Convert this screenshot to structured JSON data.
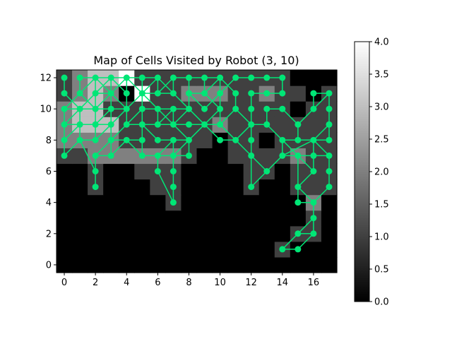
{
  "chart_data": {
    "type": "heatmap",
    "title": "Map of Cells Visited by Robot (3, 10)",
    "xlabel": "",
    "ylabel": "",
    "xlim": [
      -0.5,
      17.5
    ],
    "ylim": [
      -0.5,
      12.5
    ],
    "x_ticks": [
      0,
      2,
      4,
      6,
      8,
      10,
      12,
      14,
      16
    ],
    "y_ticks": [
      0,
      2,
      4,
      6,
      8,
      10,
      12
    ],
    "grid": false,
    "colormap": "gray",
    "colorbar": {
      "min": 0.0,
      "max": 4.0,
      "ticks": [
        "0.0",
        "0.5",
        "1.0",
        "1.5",
        "2.0",
        "2.5",
        "3.0",
        "3.5",
        "4.0"
      ]
    },
    "grid_values": [
      [
        0,
        0,
        0,
        0,
        0,
        0,
        0,
        0,
        0,
        0,
        0,
        0,
        0,
        0,
        0,
        0,
        0,
        0
      ],
      [
        0,
        0,
        0,
        0,
        0,
        0,
        0,
        0,
        0,
        0,
        0,
        0,
        0,
        0,
        1,
        0,
        0,
        0
      ],
      [
        0,
        0,
        0,
        0,
        0,
        0,
        0,
        0,
        0,
        0,
        0,
        0,
        0,
        0,
        0,
        1,
        1,
        0
      ],
      [
        0,
        0,
        0,
        0,
        0,
        0,
        0,
        0,
        0,
        0,
        0,
        0,
        0,
        0,
        0,
        0,
        1,
        0
      ],
      [
        0,
        0,
        0,
        0,
        0,
        0,
        0,
        1,
        0,
        0,
        0,
        0,
        0,
        0,
        0,
        0,
        2,
        0
      ],
      [
        0,
        0,
        1,
        0,
        0,
        0,
        1,
        1,
        0,
        0,
        0,
        0,
        1,
        0,
        0,
        1,
        1,
        1
      ],
      [
        0,
        0,
        1,
        0,
        0,
        1,
        1,
        1,
        0,
        0,
        0,
        0,
        1,
        1,
        0,
        1,
        1,
        1
      ],
      [
        1,
        1,
        2,
        2,
        2,
        2,
        2,
        2,
        1,
        0,
        0,
        1,
        1,
        1,
        1,
        2,
        1,
        1
      ],
      [
        2,
        2,
        2,
        2,
        1,
        1,
        1,
        1,
        1,
        1,
        0,
        1,
        1,
        0,
        1,
        1,
        1,
        1
      ],
      [
        2,
        3,
        3,
        3,
        1,
        1,
        1,
        1,
        1,
        1,
        2,
        1,
        1,
        1,
        1,
        1,
        1,
        1
      ],
      [
        2,
        3,
        3,
        1,
        1,
        1,
        1,
        1,
        1,
        1,
        1,
        1,
        1,
        1,
        1,
        0,
        1,
        1
      ],
      [
        1,
        2,
        3,
        2,
        0,
        4,
        1,
        1,
        2,
        2,
        2,
        1,
        1,
        2,
        1,
        1,
        0,
        1
      ],
      [
        1,
        2,
        3,
        3,
        4,
        1,
        1,
        1,
        1,
        1,
        1,
        1,
        1,
        1,
        1,
        0,
        0,
        0
      ]
    ],
    "path_points": [
      [
        0,
        12
      ],
      [
        0,
        11
      ],
      [
        1,
        10
      ],
      [
        1,
        9
      ],
      [
        0,
        8
      ],
      [
        0,
        9
      ],
      [
        0,
        10
      ],
      [
        1,
        11
      ],
      [
        1,
        12
      ],
      [
        2,
        12
      ],
      [
        3,
        12
      ],
      [
        4,
        12
      ],
      [
        5,
        12
      ],
      [
        6,
        12
      ],
      [
        6,
        11
      ],
      [
        7,
        11
      ],
      [
        7,
        12
      ],
      [
        8,
        12
      ],
      [
        8,
        11
      ],
      [
        9,
        10
      ],
      [
        10,
        11
      ],
      [
        11,
        12
      ],
      [
        12,
        12
      ],
      [
        13,
        12
      ],
      [
        14,
        12
      ],
      [
        14,
        11
      ],
      [
        13,
        11
      ],
      [
        12,
        11
      ],
      [
        12,
        10
      ],
      [
        12,
        9
      ],
      [
        12,
        8
      ],
      [
        12,
        7
      ],
      [
        13,
        6
      ],
      [
        14,
        7
      ],
      [
        15,
        7
      ],
      [
        16,
        7
      ],
      [
        16,
        6
      ],
      [
        15,
        7
      ],
      [
        14,
        8
      ],
      [
        13,
        9
      ],
      [
        13,
        10
      ],
      [
        14,
        10
      ],
      [
        15,
        9
      ],
      [
        15,
        8
      ],
      [
        16,
        8
      ],
      [
        17,
        7
      ],
      [
        17,
        6
      ],
      [
        17,
        5
      ],
      [
        16,
        4
      ],
      [
        16,
        3
      ],
      [
        16,
        2
      ],
      [
        15,
        1
      ],
      [
        14,
        1
      ],
      [
        15,
        2
      ],
      [
        16,
        3
      ],
      [
        16,
        4
      ],
      [
        15,
        5
      ],
      [
        15,
        7
      ],
      [
        14,
        7
      ],
      [
        13,
        6
      ],
      [
        12,
        5
      ],
      [
        13,
        6
      ],
      [
        14,
        7
      ],
      [
        16,
        8
      ],
      [
        17,
        9
      ],
      [
        17,
        10
      ],
      [
        17,
        11
      ],
      [
        16,
        10
      ],
      [
        15,
        9
      ],
      [
        15,
        8
      ],
      [
        14,
        8
      ],
      [
        13,
        9
      ],
      [
        12,
        9
      ],
      [
        11,
        8
      ],
      [
        10,
        9
      ],
      [
        10,
        10
      ],
      [
        9,
        11
      ],
      [
        9,
        12
      ],
      [
        10,
        12
      ],
      [
        11,
        11
      ],
      [
        11,
        10
      ],
      [
        10,
        9
      ],
      [
        9,
        9
      ],
      [
        8,
        8
      ],
      [
        7,
        9
      ],
      [
        7,
        10
      ],
      [
        6,
        10
      ],
      [
        5,
        11
      ],
      [
        5,
        10
      ],
      [
        5,
        9
      ],
      [
        6,
        8
      ],
      [
        7,
        8
      ],
      [
        6,
        7
      ],
      [
        5,
        7
      ],
      [
        5,
        8
      ],
      [
        4,
        8
      ],
      [
        3,
        7
      ],
      [
        3,
        8
      ],
      [
        2,
        7
      ],
      [
        2,
        6
      ],
      [
        2,
        5
      ],
      [
        2,
        6
      ],
      [
        1,
        8
      ],
      [
        1,
        9
      ],
      [
        2,
        9
      ],
      [
        3,
        9
      ],
      [
        3,
        10
      ],
      [
        4,
        10
      ],
      [
        4,
        11
      ],
      [
        3,
        12
      ],
      [
        2,
        11
      ],
      [
        2,
        10
      ],
      [
        1,
        10
      ],
      [
        0,
        9
      ],
      [
        0,
        7
      ],
      [
        1,
        8
      ],
      [
        2,
        8
      ],
      [
        3,
        9
      ],
      [
        3,
        11
      ],
      [
        2,
        11
      ],
      [
        2,
        12
      ],
      [
        3,
        11
      ],
      [
        4,
        10
      ],
      [
        5,
        11
      ],
      [
        6,
        10
      ],
      [
        6,
        9
      ],
      [
        7,
        9
      ],
      [
        8,
        10
      ],
      [
        9,
        9
      ],
      [
        10,
        10
      ],
      [
        10,
        11
      ],
      [
        10,
        12
      ],
      [
        9,
        11
      ],
      [
        8,
        11
      ],
      [
        8,
        10
      ],
      [
        7,
        10
      ],
      [
        6,
        9
      ],
      [
        5,
        9
      ],
      [
        4,
        9
      ],
      [
        4,
        12
      ],
      [
        5,
        12
      ],
      [
        5,
        11
      ],
      [
        4,
        10
      ],
      [
        3,
        9
      ],
      [
        2,
        8
      ],
      [
        2,
        9
      ],
      [
        2,
        10
      ],
      [
        3,
        11
      ],
      [
        3,
        12
      ],
      [
        2,
        12
      ],
      [
        1,
        11
      ],
      [
        2,
        10
      ],
      [
        3,
        10
      ],
      [
        2,
        9
      ],
      [
        1,
        9
      ],
      [
        0,
        9
      ],
      [
        0,
        10
      ],
      [
        1,
        10
      ],
      [
        2,
        11
      ],
      [
        3,
        11
      ],
      [
        4,
        12
      ],
      [
        5,
        11
      ],
      [
        6,
        11
      ],
      [
        7,
        12
      ],
      [
        8,
        12
      ],
      [
        9,
        12
      ],
      [
        10,
        12
      ],
      [
        11,
        11
      ],
      [
        11,
        10
      ],
      [
        12,
        9
      ],
      [
        12,
        8
      ],
      [
        12,
        7
      ],
      [
        12,
        5
      ],
      [
        13,
        6
      ],
      [
        14,
        7
      ],
      [
        14,
        8
      ],
      [
        15,
        8
      ],
      [
        15,
        9
      ],
      [
        16,
        10
      ],
      [
        16,
        11
      ],
      [
        17,
        11
      ],
      [
        17,
        10
      ],
      [
        17,
        9
      ],
      [
        17,
        8
      ],
      [
        16,
        8
      ],
      [
        16,
        7
      ],
      [
        16,
        6
      ],
      [
        15,
        5
      ],
      [
        15,
        4
      ],
      [
        16,
        4
      ],
      [
        16,
        3
      ],
      [
        16,
        2
      ],
      [
        15,
        2
      ],
      [
        14,
        1
      ],
      [
        15,
        1
      ],
      [
        16,
        2
      ],
      [
        16,
        3
      ],
      [
        16,
        4
      ],
      [
        17,
        5
      ],
      [
        17,
        6
      ],
      [
        17,
        7
      ],
      [
        16,
        7
      ],
      [
        15,
        7
      ],
      [
        14,
        7
      ],
      [
        13,
        6
      ],
      [
        12,
        5
      ],
      [
        12,
        7
      ],
      [
        11,
        8
      ],
      [
        10,
        8
      ],
      [
        9,
        9
      ],
      [
        8,
        10
      ],
      [
        7,
        11
      ],
      [
        6,
        12
      ],
      [
        5,
        11
      ],
      [
        5,
        10
      ],
      [
        4,
        9
      ],
      [
        3,
        8
      ],
      [
        3,
        7
      ],
      [
        4,
        8
      ],
      [
        5,
        7
      ],
      [
        6,
        7
      ],
      [
        7,
        7
      ],
      [
        8,
        7
      ],
      [
        8,
        8
      ],
      [
        7,
        8
      ],
      [
        7,
        7
      ],
      [
        7,
        6
      ],
      [
        7,
        5
      ],
      [
        7,
        4
      ],
      [
        6,
        6
      ],
      [
        6,
        7
      ],
      [
        7,
        7
      ],
      [
        8,
        8
      ],
      [
        9,
        9
      ],
      [
        10,
        9
      ],
      [
        11,
        8
      ],
      [
        10,
        8
      ],
      [
        9,
        9
      ],
      [
        8,
        9
      ],
      [
        7,
        9
      ],
      [
        6,
        10
      ],
      [
        5,
        10
      ],
      [
        5,
        9
      ],
      [
        5,
        8
      ],
      [
        4,
        8
      ],
      [
        3,
        8
      ],
      [
        2,
        7
      ],
      [
        3,
        7
      ],
      [
        3,
        8
      ],
      [
        3,
        9
      ]
    ],
    "path_color": "#00e676"
  }
}
